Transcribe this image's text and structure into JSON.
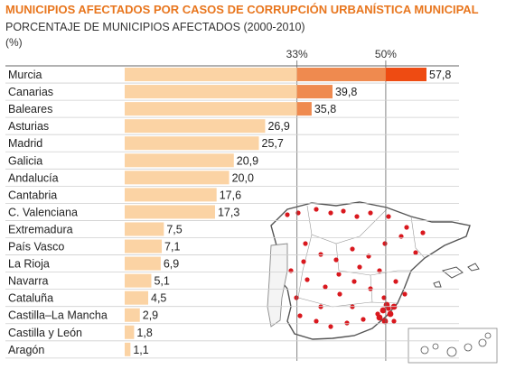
{
  "title": "MUNICIPIOS AFECTADOS POR CASOS DE CORRUPCIÓN URBANÍSTICA MUNICIPAL",
  "subtitle": "PORCENTAJE DE MUNICIPIOS AFECTADOS (2000-2010)",
  "unit": "(%)",
  "colors": {
    "title": "#e8761e",
    "bar_low": "#fbd3a4",
    "bar_mid": "#ef8a4f",
    "bar_high": "#ee4b12",
    "map_land": "#ffffff",
    "map_border": "#555555",
    "map_spots": "#d9181e"
  },
  "chart_data": {
    "type": "bar",
    "orientation": "horizontal",
    "categories": [
      "Murcia",
      "Canarias",
      "Baleares",
      "Asturias",
      "Madrid",
      "Galicia",
      "Andalucía",
      "Cantabria",
      "C. Valenciana",
      "Extremadura",
      "País Vasco",
      "La Rioja",
      "Navarra",
      "Cataluña",
      "Castilla–La Mancha",
      "Castilla y León",
      "Aragón"
    ],
    "values": [
      57.8,
      39.8,
      35.8,
      26.9,
      25.7,
      20.9,
      20.0,
      17.6,
      17.3,
      7.5,
      7.1,
      6.9,
      5.1,
      4.5,
      2.9,
      1.8,
      1.1
    ],
    "value_labels": [
      "57,8",
      "39,8",
      "35,8",
      "26,9",
      "25,7",
      "20,9",
      "20,0",
      "17,6",
      "17,3",
      "7,5",
      "7,1",
      "6,9",
      "5,1",
      "4,5",
      "2,9",
      "1,8",
      "1,1"
    ],
    "reference_lines": [
      {
        "value": 33,
        "label": "33%"
      },
      {
        "value": 50,
        "label": "50%"
      }
    ],
    "xlim": [
      0,
      57.8
    ],
    "grid": false,
    "legend": "none"
  }
}
